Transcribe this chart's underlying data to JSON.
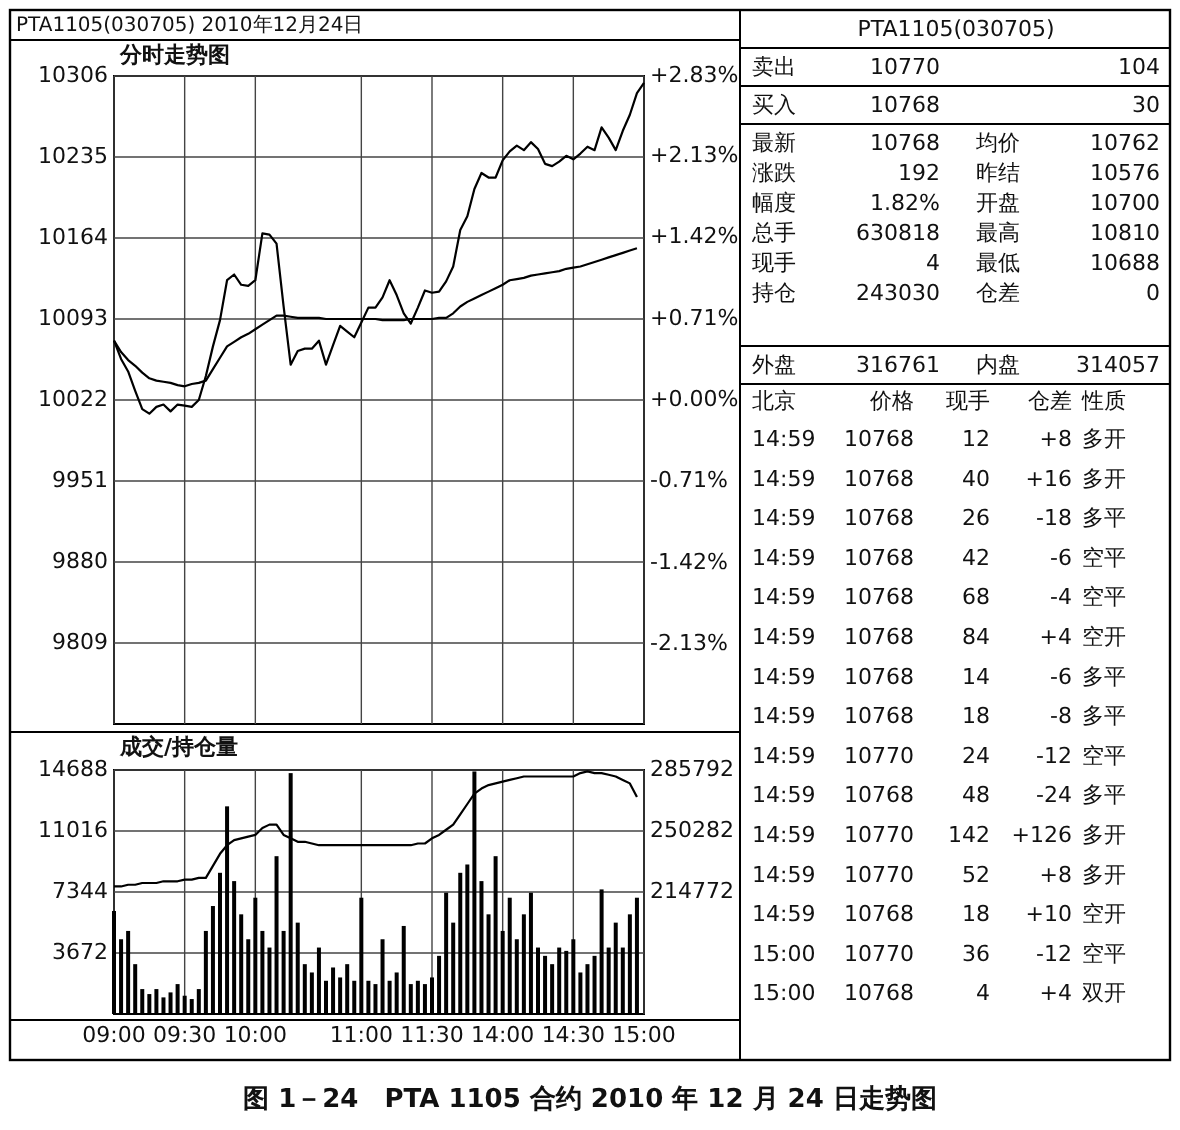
{
  "chart_data": [
    {
      "type": "line",
      "title": "分时走势图",
      "annotations": [
        "PTA1105(030705) 2010年12月24日",
        "图 1－24　PTA 1105 合约 2010 年 12 月 24 日走势图"
      ],
      "categories": [
        null,
        null,
        null,
        null,
        null,
        null,
        null,
        null,
        null,
        null,
        null,
        null,
        null,
        null,
        null,
        null,
        null,
        null,
        null,
        null,
        null,
        null,
        null,
        null,
        null,
        null,
        null,
        null,
        null,
        null,
        null,
        null,
        null,
        null,
        null,
        null,
        null,
        null,
        null,
        null,
        null,
        null,
        null,
        null,
        null,
        null,
        null,
        null,
        null,
        null,
        null,
        null,
        null,
        null,
        null,
        null,
        null,
        null,
        null,
        null,
        null,
        null,
        null,
        null,
        null,
        null,
        null,
        null,
        null,
        null,
        null,
        null,
        null,
        null,
        null,
        null
      ],
      "series": [
        {
          "color": "#000000",
          "values": [
            10074,
            10058,
            10047,
            10030,
            10014,
            10010,
            10016,
            10018,
            10012,
            10018,
            10017,
            10016,
            10022,
            10043,
            10069,
            10092,
            10127,
            10132,
            10123,
            10122,
            10127,
            10168,
            10167,
            10159,
            10104,
            10053,
            10065,
            10067,
            10067,
            10074,
            10053,
            10070,
            10087,
            10082,
            10077,
            10090,
            10103,
            10103,
            10112,
            10127,
            10114,
            10098,
            10089,
            10103,
            10118,
            10116,
            10117,
            10126,
            10139,
            10171,
            10183,
            10207,
            10221,
            10217,
            10217,
            10232,
            10240,
            10245,
            10241,
            10248,
            10242,
            10229,
            10227,
            10231,
            10236,
            10233,
            10238,
            10244,
            10241,
            10261,
            10252,
            10241,
            10258,
            10272,
            10291,
            10300
          ]
        },
        {
          "color": "#000000",
          "values": [
            10074,
            10064,
            10057,
            10052,
            10046,
            10041,
            10039,
            10038,
            10037,
            10035,
            10034,
            10036,
            10037,
            10039,
            10049,
            10059,
            10069,
            10073,
            10077,
            10080,
            10084,
            10088,
            10092,
            10096,
            10096,
            10095,
            10094,
            10094,
            10094,
            10094,
            10093,
            10093,
            10093,
            10093,
            10093,
            10093,
            10093,
            10093,
            10092,
            10092,
            10092,
            10092,
            10093,
            10093,
            10093,
            10093,
            10094,
            10094,
            10098,
            10104,
            10108,
            10111,
            10114,
            10117,
            10120,
            10123,
            10127,
            10128,
            10129,
            10131,
            10132,
            10133,
            10134,
            10135,
            10137,
            10138,
            10139,
            10141,
            10143,
            10145,
            10147,
            10149,
            10151,
            10153,
            10155,
            null
          ]
        }
      ],
      "ylim": [
        9738,
        10306
      ],
      "yticks": [
        9809,
        9880,
        9951,
        10022,
        10093,
        10164,
        10235,
        10306
      ],
      "y2lim": [
        -2.83,
        2.83
      ],
      "y2ticks": [
        {
          "value": -2.13,
          "label": "-2.13%"
        },
        {
          "value": -1.42,
          "label": "-1.42%"
        },
        {
          "value": -0.71,
          "label": "-0.71%"
        },
        {
          "value": 0,
          "label": "+0.00%"
        },
        {
          "value": 0.71,
          "label": "+0.71%"
        },
        {
          "value": 1.42,
          "label": "+1.42%"
        },
        {
          "value": 2.13,
          "label": "+2.13%"
        },
        {
          "value": 2.83,
          "label": "+2.83%"
        }
      ],
      "grid": true,
      "tick_labels": "y"
    },
    {
      "type": "bar",
      "title": "成交/持仓量",
      "categories": [
        "09:00",
        null,
        null,
        null,
        null,
        null,
        null,
        null,
        null,
        null,
        "09:30",
        null,
        null,
        null,
        null,
        null,
        null,
        null,
        null,
        null,
        "10:00",
        null,
        null,
        null,
        null,
        null,
        null,
        null,
        null,
        null,
        null,
        null,
        null,
        null,
        null,
        "11:00",
        null,
        null,
        null,
        null,
        null,
        null,
        null,
        null,
        null,
        "11:30",
        null,
        null,
        null,
        null,
        null,
        null,
        null,
        null,
        null,
        "14:00",
        null,
        null,
        null,
        null,
        null,
        null,
        null,
        null,
        null,
        "14:30",
        null,
        null,
        null,
        null,
        null,
        null,
        null,
        null,
        null,
        "15:00"
      ],
      "series": [
        {
          "color": "#000000",
          "values": [
            6200,
            4500,
            5000,
            3000,
            1500,
            1200,
            1500,
            1000,
            1300,
            1800,
            1100,
            900,
            1500,
            5000,
            6500,
            8500,
            12500,
            8000,
            6000,
            4500,
            7000,
            5000,
            4000,
            9500,
            5000,
            14500,
            5500,
            3000,
            2500,
            4000,
            2000,
            2800,
            2200,
            3000,
            2000,
            7000,
            2000,
            1800,
            4500,
            2000,
            2500,
            5300,
            1800,
            2000,
            1800,
            2200,
            3500,
            7300,
            5500,
            8500,
            9000,
            14600,
            8000,
            6000,
            9500,
            5000,
            7000,
            4500,
            6000,
            7300,
            4000,
            3500,
            3000,
            4000,
            3800,
            4500,
            2500,
            3000,
            3500,
            7500,
            4000,
            5500,
            4000,
            6000,
            7000,
            null
          ]
        },
        {
          "type": "line",
          "axis": "y2",
          "color": "#000000",
          "values": [
            218000,
            218000,
            219000,
            219000,
            220000,
            220000,
            220000,
            221000,
            221000,
            221000,
            222000,
            222000,
            223000,
            223000,
            230000,
            237000,
            242000,
            245000,
            246000,
            247000,
            248000,
            252000,
            254000,
            254000,
            248000,
            246000,
            244000,
            244000,
            243000,
            242000,
            242000,
            242000,
            242000,
            242000,
            242000,
            242000,
            242000,
            242000,
            242000,
            242000,
            242000,
            242000,
            242000,
            243000,
            243000,
            246000,
            248000,
            251000,
            254000,
            260000,
            266000,
            272000,
            275000,
            277000,
            278000,
            279000,
            280000,
            281000,
            282000,
            282000,
            282000,
            282000,
            282000,
            282000,
            282000,
            282000,
            284000,
            285000,
            284000,
            284000,
            283000,
            282000,
            280000,
            278000,
            270000,
            null
          ]
        }
      ],
      "ylim": [
        0,
        14688
      ],
      "yticks": [
        3672,
        7344,
        11016,
        14688
      ],
      "y2lim": [
        143752,
        285792
      ],
      "y2ticks": [
        214772,
        250282,
        285792
      ],
      "grid": true
    },
    {
      "type": "other",
      "title": "PTA1105(030705)",
      "annotations": [
        "卖出",
        "10770",
        "104",
        "买入",
        "10768",
        "30",
        "最新",
        "10768",
        "均价",
        "10762",
        "涨跌",
        "192",
        "昨结",
        "10576",
        "幅度",
        "1.82%",
        "开盘",
        "10700",
        "总手",
        "630818",
        "最高",
        "10810",
        "现手",
        "4",
        "最低",
        "10688",
        "持仓",
        "243030",
        "仓差",
        "0",
        "外盘",
        "316761",
        "内盘",
        "314057",
        "北京",
        "价格",
        "现手",
        "仓差",
        "性质",
        "14:59",
        "10768",
        "12",
        "+8",
        "多开",
        "14:59",
        "10768",
        "40",
        "+16",
        "多开",
        "14:59",
        "10768",
        "26",
        "-18",
        "多平",
        "14:59",
        "10768",
        "42",
        "-6",
        "空平",
        "14:59",
        "10768",
        "68",
        "-4",
        "空平",
        "14:59",
        "10768",
        "84",
        "+4",
        "空开",
        "14:59",
        "10768",
        "14",
        "-6",
        "多平",
        "14:59",
        "10768",
        "18",
        "-8",
        "多平",
        "14:59",
        "10770",
        "24",
        "-12",
        "空平",
        "14:59",
        "10768",
        "48",
        "-24",
        "多平",
        "14:59",
        "10770",
        "142",
        "+126",
        "多开",
        "14:59",
        "10770",
        "52",
        "+8",
        "多开",
        "14:59",
        "10768",
        "18",
        "+10",
        "空开",
        "15:00",
        "10770",
        "36",
        "-12",
        "空平",
        "15:00",
        "10768",
        "4",
        "+4",
        "双开"
      ]
    }
  ]
}
